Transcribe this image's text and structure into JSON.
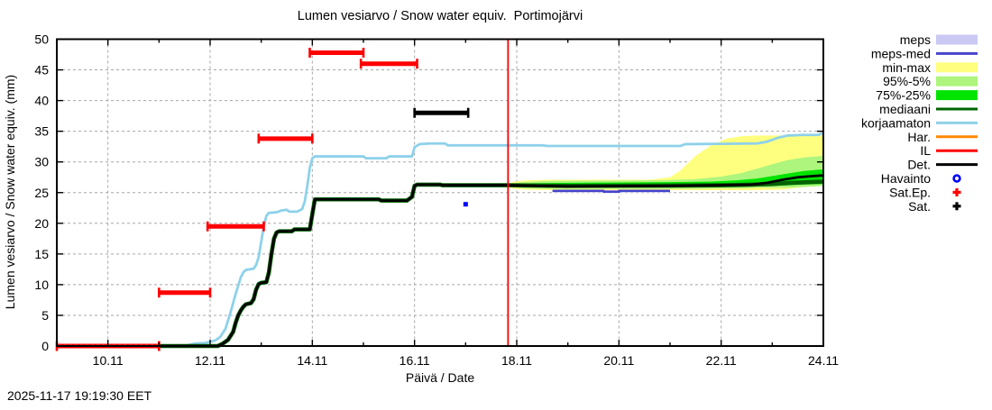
{
  "footer": {
    "timestamp": "2025-11-17 19:19:30 EET"
  },
  "chart_data": {
    "type": "line",
    "title": "Lumen vesiarvo / Snow water equiv.  Portimojärvi",
    "xlabel": "Päivä / Date",
    "ylabel": "Lumen vesiarvo / Snow water equiv. (mm)",
    "x_unit": "date in November 2025 (D.11)",
    "xlim": [
      9,
      24
    ],
    "ylim": [
      0,
      50
    ],
    "x_major_ticks": [
      10,
      12,
      14,
      16,
      18,
      20,
      22,
      24
    ],
    "x_major_tick_labels": [
      "10.11",
      "12.11",
      "14.11",
      "16.11",
      "18.11",
      "20.11",
      "22.11",
      "24.11"
    ],
    "x_minor_tick_step": 1,
    "y_ticks": [
      0,
      5,
      10,
      15,
      20,
      25,
      30,
      35,
      40,
      45,
      50
    ],
    "grid": true,
    "legend_position": "outside-right-top",
    "now_line": {
      "x": 17.83,
      "color": "#ff0000",
      "meaning": "current time 2025-11-17 19:19 EET"
    },
    "bands": [
      {
        "name": "meps",
        "color": "#c9c9f3",
        "points": [
          [
            18.7,
            25.0,
            25.6
          ],
          [
            21.0,
            25.0,
            25.6
          ]
        ]
      },
      {
        "name": "min-max",
        "color": "#ffff7f",
        "points": [
          [
            17.83,
            25.9,
            26.4
          ],
          [
            17.95,
            25.6,
            26.8
          ],
          [
            18.2,
            25.5,
            27.0
          ],
          [
            18.6,
            25.4,
            27.1
          ],
          [
            20.6,
            25.4,
            27.1
          ],
          [
            21.0,
            25.4,
            27.5
          ],
          [
            21.2,
            25.4,
            28.6
          ],
          [
            21.5,
            25.4,
            31.0
          ],
          [
            21.8,
            25.4,
            32.7
          ],
          [
            22.1,
            25.4,
            33.8
          ],
          [
            22.4,
            25.4,
            34.2
          ],
          [
            22.7,
            25.4,
            34.3
          ],
          [
            23.2,
            25.5,
            34.3
          ],
          [
            23.5,
            25.8,
            34.4
          ],
          [
            23.8,
            26.1,
            34.5
          ],
          [
            24.0,
            26.4,
            34.7
          ]
        ]
      },
      {
        "name": "95%-5%",
        "color": "#adf57d",
        "points": [
          [
            17.83,
            25.95,
            26.35
          ],
          [
            18.1,
            25.7,
            26.7
          ],
          [
            18.6,
            25.6,
            26.9
          ],
          [
            20.8,
            25.6,
            27.0
          ],
          [
            21.5,
            25.6,
            27.2
          ],
          [
            22.0,
            25.7,
            27.6
          ],
          [
            22.4,
            25.7,
            28.2
          ],
          [
            22.7,
            25.8,
            28.9
          ],
          [
            23.0,
            25.8,
            29.6
          ],
          [
            23.3,
            25.8,
            30.3
          ],
          [
            23.6,
            25.9,
            30.7
          ],
          [
            24.0,
            26.1,
            31.0
          ]
        ]
      },
      {
        "name": "75%-25%",
        "color": "#00e400",
        "points": [
          [
            17.83,
            26.0,
            26.3
          ],
          [
            18.2,
            25.9,
            26.5
          ],
          [
            19.0,
            25.85,
            26.6
          ],
          [
            21.0,
            25.9,
            26.7
          ],
          [
            21.8,
            26.0,
            26.8
          ],
          [
            22.3,
            26.0,
            27.0
          ],
          [
            22.7,
            26.1,
            27.3
          ],
          [
            23.0,
            26.1,
            27.7
          ],
          [
            23.3,
            26.2,
            28.1
          ],
          [
            23.6,
            26.3,
            28.5
          ],
          [
            24.0,
            26.4,
            28.8
          ]
        ]
      }
    ],
    "series": [
      {
        "name": "korjaamaton",
        "color": "#8ed1ea",
        "width": 2.8,
        "points": [
          [
            9.0,
            0
          ],
          [
            11.5,
            0
          ],
          [
            11.7,
            0.4
          ],
          [
            11.9,
            0.5
          ],
          [
            12.1,
            0.9
          ],
          [
            12.2,
            1.5
          ],
          [
            12.3,
            2.8
          ],
          [
            12.4,
            5.5
          ],
          [
            12.5,
            8.5
          ],
          [
            12.6,
            11.2
          ],
          [
            12.65,
            12.0
          ],
          [
            12.7,
            12.4
          ],
          [
            12.85,
            12.6
          ],
          [
            12.9,
            13.2
          ],
          [
            12.95,
            14.5
          ],
          [
            13.0,
            17.0
          ],
          [
            13.05,
            19.5
          ],
          [
            13.1,
            21.2
          ],
          [
            13.15,
            21.7
          ],
          [
            13.3,
            21.8
          ],
          [
            13.4,
            22.1
          ],
          [
            13.5,
            22.2
          ],
          [
            13.55,
            21.9
          ],
          [
            13.7,
            21.9
          ],
          [
            13.8,
            22.3
          ],
          [
            13.85,
            23.5
          ],
          [
            13.9,
            26.0
          ],
          [
            13.95,
            29.0
          ],
          [
            14.0,
            30.6
          ],
          [
            14.05,
            30.9
          ],
          [
            15.0,
            30.9
          ],
          [
            15.05,
            30.6
          ],
          [
            15.45,
            30.6
          ],
          [
            15.5,
            30.9
          ],
          [
            15.95,
            30.9
          ],
          [
            16.0,
            32.4
          ],
          [
            16.1,
            32.9
          ],
          [
            16.3,
            33.0
          ],
          [
            16.6,
            33.0
          ],
          [
            16.65,
            32.7
          ],
          [
            18.5,
            32.7
          ],
          [
            18.6,
            32.6
          ],
          [
            21.2,
            32.6
          ],
          [
            21.3,
            32.9
          ],
          [
            22.7,
            33.0
          ],
          [
            22.9,
            33.3
          ],
          [
            23.1,
            33.9
          ],
          [
            23.3,
            34.3
          ],
          [
            23.6,
            34.4
          ],
          [
            23.9,
            34.4
          ],
          [
            24.0,
            34.7
          ]
        ]
      },
      {
        "name": "meps-med",
        "color": "#4444cc",
        "width": 2.5,
        "points": [
          [
            18.7,
            25.3
          ],
          [
            19.7,
            25.3
          ],
          [
            19.7,
            25.15
          ],
          [
            20.0,
            25.15
          ],
          [
            20.0,
            25.3
          ],
          [
            21.0,
            25.3
          ]
        ]
      },
      {
        "name": "mediaani",
        "color": "#006400",
        "width": 4.6,
        "points": [
          [
            9.0,
            0
          ],
          [
            12.15,
            0
          ],
          [
            12.25,
            0.4
          ],
          [
            12.35,
            1.0
          ],
          [
            12.45,
            2.3
          ],
          [
            12.5,
            3.8
          ],
          [
            12.55,
            5.0
          ],
          [
            12.6,
            5.8
          ],
          [
            12.65,
            6.4
          ],
          [
            12.7,
            6.8
          ],
          [
            12.8,
            7.0
          ],
          [
            12.85,
            7.6
          ],
          [
            12.9,
            9.2
          ],
          [
            12.95,
            10.1
          ],
          [
            13.0,
            10.3
          ],
          [
            13.1,
            10.4
          ],
          [
            13.15,
            12.0
          ],
          [
            13.2,
            15.0
          ],
          [
            13.25,
            17.5
          ],
          [
            13.3,
            18.5
          ],
          [
            13.35,
            18.7
          ],
          [
            13.6,
            18.7
          ],
          [
            13.65,
            19.0
          ],
          [
            13.95,
            19.0
          ],
          [
            14.0,
            21.5
          ],
          [
            14.05,
            23.9
          ],
          [
            15.3,
            23.9
          ],
          [
            15.35,
            23.7
          ],
          [
            15.85,
            23.7
          ],
          [
            15.95,
            24.3
          ],
          [
            16.0,
            26.1
          ],
          [
            16.05,
            26.3
          ],
          [
            16.5,
            26.3
          ],
          [
            16.55,
            26.2
          ],
          [
            17.8,
            26.2
          ],
          [
            19.0,
            26.1
          ],
          [
            21.0,
            26.15
          ],
          [
            22.0,
            26.2
          ],
          [
            22.6,
            26.3
          ],
          [
            23.0,
            26.4
          ],
          [
            23.4,
            26.6
          ],
          [
            24.0,
            26.8
          ]
        ]
      },
      {
        "name": "Det.",
        "color": "#000000",
        "width": 2.8,
        "points": [
          [
            9.0,
            0
          ],
          [
            12.15,
            0
          ],
          [
            12.25,
            0.4
          ],
          [
            12.35,
            1.0
          ],
          [
            12.45,
            2.3
          ],
          [
            12.5,
            3.8
          ],
          [
            12.55,
            5.0
          ],
          [
            12.6,
            5.8
          ],
          [
            12.65,
            6.4
          ],
          [
            12.7,
            6.8
          ],
          [
            12.8,
            7.0
          ],
          [
            12.85,
            7.6
          ],
          [
            12.9,
            9.2
          ],
          [
            12.95,
            10.1
          ],
          [
            13.0,
            10.3
          ],
          [
            13.1,
            10.4
          ],
          [
            13.15,
            12.0
          ],
          [
            13.2,
            15.0
          ],
          [
            13.25,
            17.5
          ],
          [
            13.3,
            18.5
          ],
          [
            13.35,
            18.7
          ],
          [
            13.6,
            18.7
          ],
          [
            13.65,
            19.0
          ],
          [
            13.95,
            19.0
          ],
          [
            14.0,
            21.5
          ],
          [
            14.05,
            23.9
          ],
          [
            15.3,
            23.9
          ],
          [
            15.35,
            23.7
          ],
          [
            15.85,
            23.7
          ],
          [
            15.95,
            24.3
          ],
          [
            16.0,
            26.1
          ],
          [
            16.05,
            26.3
          ],
          [
            16.5,
            26.3
          ],
          [
            16.55,
            26.2
          ],
          [
            17.8,
            26.2
          ],
          [
            19.0,
            26.0
          ],
          [
            21.0,
            26.1
          ],
          [
            22.0,
            26.2
          ],
          [
            22.6,
            26.3
          ],
          [
            22.9,
            26.6
          ],
          [
            23.2,
            27.1
          ],
          [
            23.5,
            27.5
          ],
          [
            23.8,
            27.7
          ],
          [
            24.0,
            27.8
          ]
        ]
      }
    ],
    "segments": [
      {
        "name": "Sat.Ep.",
        "color": "#ff0000",
        "values": [
          {
            "x1": 9.0,
            "x2": 11.0,
            "y": 0
          },
          {
            "x1": 11.0,
            "x2": 12.0,
            "y": 8.7
          },
          {
            "x1": 11.95,
            "x2": 13.05,
            "y": 19.5
          },
          {
            "x1": 12.95,
            "x2": 14.0,
            "y": 33.8
          },
          {
            "x1": 13.95,
            "x2": 15.0,
            "y": 47.8
          },
          {
            "x1": 14.95,
            "x2": 16.05,
            "y": 46.0
          }
        ]
      },
      {
        "name": "Sat.",
        "color": "#000000",
        "values": [
          {
            "x1": 16.0,
            "x2": 17.05,
            "y": 38.0
          }
        ]
      }
    ],
    "points": [
      {
        "name": "Havainto",
        "color": "#0000ff",
        "x": 17.0,
        "y": 23.1
      }
    ]
  },
  "legend": {
    "items": [
      {
        "label": "meps",
        "type": "band",
        "color": "#c9c9f3"
      },
      {
        "label": "meps-med",
        "type": "line",
        "color": "#4444cc"
      },
      {
        "label": "min-max",
        "type": "band",
        "color": "#ffff7f"
      },
      {
        "label": "95%-5%",
        "type": "band",
        "color": "#adf57d"
      },
      {
        "label": "75%-25%",
        "type": "band",
        "color": "#00e400"
      },
      {
        "label": "mediaani",
        "type": "line",
        "color": "#006400"
      },
      {
        "label": "korjaamaton",
        "type": "line",
        "color": "#8ed1ea"
      },
      {
        "label": "Har.",
        "type": "line",
        "color": "#ff8800"
      },
      {
        "label": "IL",
        "type": "line",
        "color": "#ff0000"
      },
      {
        "label": "Det.",
        "type": "line",
        "color": "#000000"
      },
      {
        "label": "Havainto",
        "type": "marker-circle",
        "color": "#0000ff"
      },
      {
        "label": "Sat.Ep.",
        "type": "marker-plus",
        "color": "#ff0000"
      },
      {
        "label": "Sat.",
        "type": "marker-plus",
        "color": "#000000"
      }
    ]
  }
}
